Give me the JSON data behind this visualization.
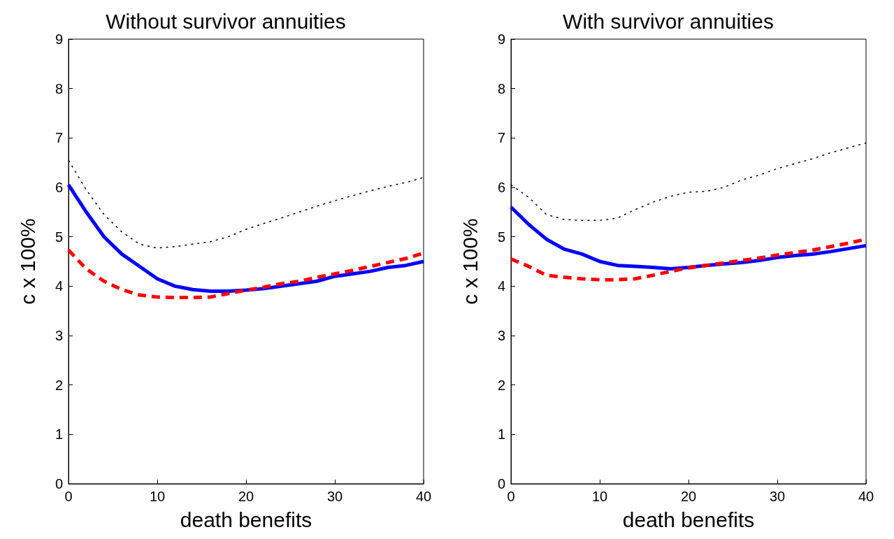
{
  "chart_data": [
    {
      "type": "line",
      "title": "Without survivor annuities",
      "xlabel": "death benefits",
      "ylabel": "c x 100%",
      "x": [
        0,
        2,
        4,
        6,
        8,
        10,
        12,
        14,
        16,
        18,
        20,
        22,
        24,
        26,
        28,
        30,
        32,
        34,
        36,
        38,
        40
      ],
      "xlim": [
        0,
        40
      ],
      "xticks": [
        0,
        10,
        20,
        30,
        40
      ],
      "ylim": [
        0,
        9
      ],
      "yticks": [
        0,
        1,
        2,
        3,
        4,
        5,
        6,
        7,
        8,
        9
      ],
      "grid": false,
      "marker": "none",
      "series": [
        {
          "color": "#000000",
          "line_style": "dotted",
          "values": [
            6.55,
            5.95,
            5.45,
            5.1,
            4.85,
            4.77,
            4.8,
            4.85,
            4.9,
            5.0,
            5.15,
            5.27,
            5.38,
            5.5,
            5.62,
            5.73,
            5.83,
            5.93,
            6.02,
            6.1,
            6.2
          ]
        },
        {
          "color": "#0000ff",
          "line_style": "solid",
          "values": [
            6.05,
            5.5,
            5.0,
            4.65,
            4.4,
            4.15,
            4.0,
            3.93,
            3.9,
            3.9,
            3.92,
            3.95,
            4.0,
            4.05,
            4.1,
            4.2,
            4.25,
            4.3,
            4.38,
            4.42,
            4.5
          ]
        },
        {
          "color": "#ff0000",
          "line_style": "dashed",
          "values": [
            4.73,
            4.35,
            4.1,
            3.93,
            3.82,
            3.78,
            3.77,
            3.77,
            3.78,
            3.85,
            3.92,
            3.98,
            4.05,
            4.1,
            4.18,
            4.25,
            4.32,
            4.4,
            4.48,
            4.56,
            4.67
          ]
        }
      ]
    },
    {
      "type": "line",
      "title": "With survivor annuities",
      "xlabel": "death benefits",
      "ylabel": "c x 100%",
      "x": [
        0,
        2,
        4,
        6,
        8,
        10,
        12,
        14,
        16,
        18,
        20,
        22,
        24,
        26,
        28,
        30,
        32,
        34,
        36,
        38,
        40
      ],
      "xlim": [
        0,
        40
      ],
      "xticks": [
        0,
        10,
        20,
        30,
        40
      ],
      "ylim": [
        0,
        9
      ],
      "yticks": [
        0,
        1,
        2,
        3,
        4,
        5,
        6,
        7,
        8,
        9
      ],
      "grid": false,
      "marker": "none",
      "series": [
        {
          "color": "#000000",
          "line_style": "dotted",
          "values": [
            6.05,
            5.8,
            5.45,
            5.35,
            5.33,
            5.33,
            5.38,
            5.55,
            5.7,
            5.82,
            5.9,
            5.92,
            6.0,
            6.15,
            6.25,
            6.38,
            6.48,
            6.58,
            6.7,
            6.8,
            6.9
          ]
        },
        {
          "color": "#0000ff",
          "line_style": "solid",
          "values": [
            5.6,
            5.25,
            4.95,
            4.75,
            4.65,
            4.5,
            4.42,
            4.4,
            4.38,
            4.35,
            4.38,
            4.42,
            4.45,
            4.48,
            4.52,
            4.58,
            4.62,
            4.65,
            4.7,
            4.76,
            4.82
          ]
        },
        {
          "color": "#ff0000",
          "line_style": "dashed",
          "values": [
            4.55,
            4.4,
            4.22,
            4.18,
            4.15,
            4.13,
            4.13,
            4.15,
            4.22,
            4.3,
            4.37,
            4.42,
            4.47,
            4.52,
            4.57,
            4.63,
            4.68,
            4.73,
            4.8,
            4.87,
            4.95
          ]
        }
      ]
    }
  ]
}
